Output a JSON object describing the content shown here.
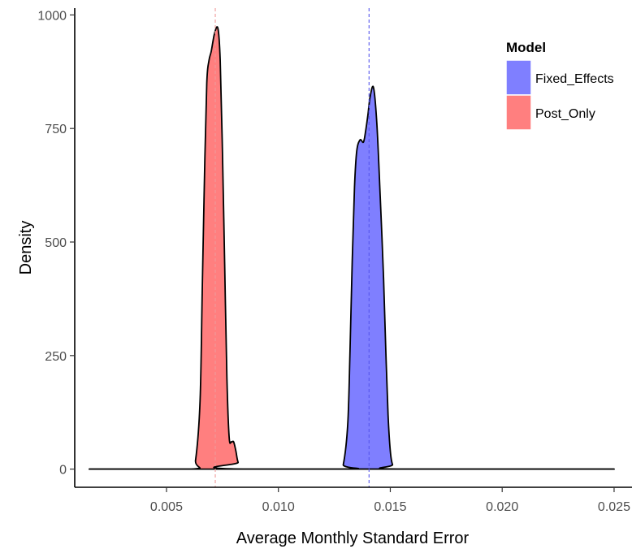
{
  "chart_data": {
    "type": "area",
    "xlabel": "Average Monthly Standard Error",
    "ylabel": "Density",
    "xlim": [
      0.0009,
      0.0258
    ],
    "ylim": [
      -40,
      1015
    ],
    "x_ticks": [
      0.005,
      0.01,
      0.015,
      0.02,
      0.025
    ],
    "x_tick_labels": [
      "0.005",
      "0.010",
      "0.015",
      "0.020",
      "0.025"
    ],
    "y_ticks": [
      0,
      250,
      500,
      750,
      1000
    ],
    "y_tick_labels": [
      "0",
      "250",
      "500",
      "750",
      "1000"
    ],
    "grid": false,
    "legend": {
      "title": "Model",
      "placement": "top-right",
      "entries": [
        {
          "label": "Fixed_Effects",
          "color": "#7f7fff"
        },
        {
          "label": "Post_Only",
          "color": "#ff7f7f"
        }
      ]
    },
    "series": [
      {
        "name": "Fixed_Effects",
        "color": "#7f7fff",
        "mean_line": 0.01405,
        "mean_line_color": "#5555ee",
        "x": [
          0.00155,
          0.0127,
          0.0129,
          0.0131,
          0.0132,
          0.0133,
          0.0134,
          0.0135,
          0.01365,
          0.0138,
          0.0139,
          0.014,
          0.0141,
          0.01425,
          0.0144,
          0.01455,
          0.0147,
          0.0148,
          0.0149,
          0.015,
          0.0151,
          0.0153,
          0.025
        ],
        "y": [
          0,
          0,
          10,
          100,
          260,
          460,
          620,
          700,
          725,
          720,
          745,
          780,
          820,
          840,
          760,
          600,
          420,
          260,
          120,
          40,
          10,
          0,
          0
        ]
      },
      {
        "name": "Post_Only",
        "color": "#ff7f7f",
        "mean_line": 0.00718,
        "mean_line_color": "#ee9999",
        "x": [
          0.00155,
          0.0061,
          0.0063,
          0.0065,
          0.0066,
          0.0067,
          0.0068,
          0.0069,
          0.007,
          0.00715,
          0.0073,
          0.0074,
          0.0075,
          0.0076,
          0.0077,
          0.0078,
          0.0079,
          0.008,
          0.0081,
          0.0082,
          0.0084,
          0.025
        ],
        "y": [
          0,
          0,
          20,
          150,
          400,
          650,
          850,
          900,
          920,
          960,
          970,
          900,
          700,
          450,
          200,
          70,
          60,
          60,
          40,
          15,
          0,
          0
        ]
      }
    ]
  }
}
